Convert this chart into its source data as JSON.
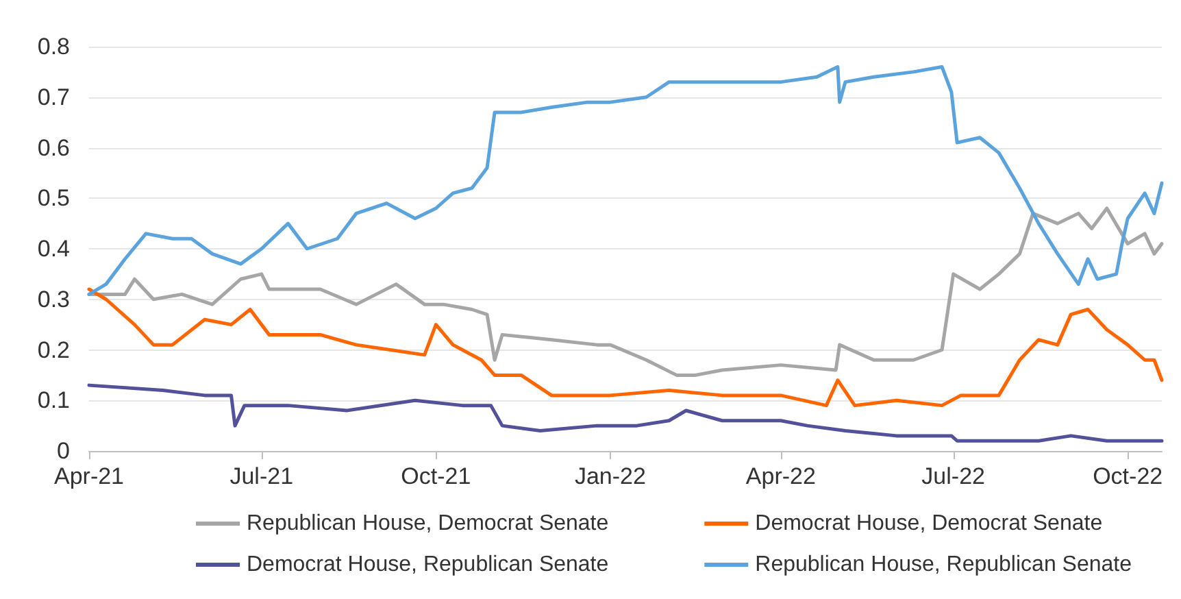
{
  "chart_data": {
    "type": "line",
    "xlim": [
      "2021-04-01",
      "2022-10-19"
    ],
    "xticks": [
      {
        "value": "2021-04-01",
        "label": "Apr-21"
      },
      {
        "value": "2021-07-01",
        "label": "Jul-21"
      },
      {
        "value": "2021-10-01",
        "label": "Oct-21"
      },
      {
        "value": "2022-01-01",
        "label": "Jan-22"
      },
      {
        "value": "2022-04-01",
        "label": "Apr-22"
      },
      {
        "value": "2022-07-01",
        "label": "Jul-22"
      },
      {
        "value": "2022-10-01",
        "label": "Oct-22"
      }
    ],
    "ylim": [
      0,
      0.8
    ],
    "yticks": [
      0,
      0.1,
      0.2,
      0.3,
      0.4,
      0.5,
      0.6,
      0.7,
      0.8
    ],
    "grid": "y",
    "legend": "bottom",
    "marker": "none",
    "line_style": "solid",
    "series": [
      {
        "name": "Republican House, Democrat Senate",
        "color": "#a6a6a6",
        "x": [
          "2021-04-01",
          "2021-04-20",
          "2021-04-25",
          "2021-05-05",
          "2021-05-20",
          "2021-06-05",
          "2021-06-20",
          "2021-07-01",
          "2021-07-05",
          "2021-08-01",
          "2021-08-20",
          "2021-09-10",
          "2021-09-25",
          "2021-10-05",
          "2021-10-20",
          "2021-10-28",
          "2021-11-01",
          "2021-11-05",
          "2021-12-01",
          "2021-12-25",
          "2022-01-01",
          "2022-01-20",
          "2022-02-05",
          "2022-02-15",
          "2022-03-01",
          "2022-04-01",
          "2022-04-30",
          "2022-05-02",
          "2022-05-20",
          "2022-06-10",
          "2022-06-25",
          "2022-07-01",
          "2022-07-15",
          "2022-07-25",
          "2022-08-05",
          "2022-08-12",
          "2022-08-25",
          "2022-09-05",
          "2022-09-12",
          "2022-09-20",
          "2022-10-01",
          "2022-10-10",
          "2022-10-15",
          "2022-10-19"
        ],
        "values": [
          0.31,
          0.31,
          0.34,
          0.3,
          0.31,
          0.29,
          0.34,
          0.35,
          0.32,
          0.32,
          0.29,
          0.33,
          0.29,
          0.29,
          0.28,
          0.27,
          0.18,
          0.23,
          0.22,
          0.21,
          0.21,
          0.18,
          0.15,
          0.15,
          0.16,
          0.17,
          0.16,
          0.21,
          0.18,
          0.18,
          0.2,
          0.35,
          0.32,
          0.35,
          0.39,
          0.47,
          0.45,
          0.47,
          0.44,
          0.48,
          0.41,
          0.43,
          0.39,
          0.41
        ]
      },
      {
        "name": "Democrat House, Democrat Senate",
        "color": "#ff6600",
        "x": [
          "2021-04-01",
          "2021-04-10",
          "2021-04-25",
          "2021-05-05",
          "2021-05-15",
          "2021-06-01",
          "2021-06-15",
          "2021-06-25",
          "2021-07-05",
          "2021-08-01",
          "2021-08-20",
          "2021-09-25",
          "2021-10-01",
          "2021-10-10",
          "2021-10-25",
          "2021-11-01",
          "2021-11-15",
          "2021-12-01",
          "2021-12-25",
          "2022-01-01",
          "2022-02-01",
          "2022-03-01",
          "2022-04-01",
          "2022-04-25",
          "2022-05-01",
          "2022-05-10",
          "2022-06-01",
          "2022-06-25",
          "2022-07-05",
          "2022-07-25",
          "2022-08-05",
          "2022-08-15",
          "2022-08-25",
          "2022-09-01",
          "2022-09-10",
          "2022-09-20",
          "2022-10-01",
          "2022-10-10",
          "2022-10-15",
          "2022-10-19"
        ],
        "values": [
          0.32,
          0.3,
          0.25,
          0.21,
          0.21,
          0.26,
          0.25,
          0.28,
          0.23,
          0.23,
          0.21,
          0.19,
          0.25,
          0.21,
          0.18,
          0.15,
          0.15,
          0.11,
          0.11,
          0.11,
          0.12,
          0.11,
          0.11,
          0.09,
          0.14,
          0.09,
          0.1,
          0.09,
          0.11,
          0.11,
          0.18,
          0.22,
          0.21,
          0.27,
          0.28,
          0.24,
          0.21,
          0.18,
          0.18,
          0.14
        ]
      },
      {
        "name": "Democrat House, Republican Senate",
        "color": "#525199",
        "x": [
          "2021-04-01",
          "2021-05-10",
          "2021-06-01",
          "2021-06-15",
          "2021-06-17",
          "2021-06-22",
          "2021-07-15",
          "2021-08-15",
          "2021-09-20",
          "2021-10-15",
          "2021-10-30",
          "2021-11-05",
          "2021-11-25",
          "2021-12-25",
          "2022-01-15",
          "2022-02-01",
          "2022-02-10",
          "2022-03-01",
          "2022-04-01",
          "2022-04-15",
          "2022-05-05",
          "2022-06-01",
          "2022-06-30",
          "2022-07-03",
          "2022-08-15",
          "2022-09-01",
          "2022-09-20",
          "2022-10-19"
        ],
        "values": [
          0.13,
          0.12,
          0.11,
          0.11,
          0.05,
          0.09,
          0.09,
          0.08,
          0.1,
          0.09,
          0.09,
          0.05,
          0.04,
          0.05,
          0.05,
          0.06,
          0.08,
          0.06,
          0.06,
          0.05,
          0.04,
          0.03,
          0.03,
          0.02,
          0.02,
          0.03,
          0.02,
          0.02
        ]
      },
      {
        "name": "Republican House, Republican Senate",
        "color": "#5ba3dc",
        "x": [
          "2021-04-01",
          "2021-04-10",
          "2021-04-20",
          "2021-05-01",
          "2021-05-15",
          "2021-05-25",
          "2021-06-05",
          "2021-06-20",
          "2021-07-01",
          "2021-07-15",
          "2021-07-25",
          "2021-08-10",
          "2021-08-20",
          "2021-09-05",
          "2021-09-20",
          "2021-10-01",
          "2021-10-10",
          "2021-10-20",
          "2021-10-28",
          "2021-11-01",
          "2021-11-15",
          "2021-12-01",
          "2021-12-20",
          "2022-01-01",
          "2022-01-20",
          "2022-02-01",
          "2022-02-15",
          "2022-03-01",
          "2022-03-20",
          "2022-04-01",
          "2022-04-20",
          "2022-05-01",
          "2022-05-02",
          "2022-05-05",
          "2022-05-20",
          "2022-06-10",
          "2022-06-25",
          "2022-06-30",
          "2022-07-03",
          "2022-07-15",
          "2022-07-25",
          "2022-08-05",
          "2022-08-15",
          "2022-08-25",
          "2022-09-05",
          "2022-09-10",
          "2022-09-15",
          "2022-09-25",
          "2022-09-28",
          "2022-10-01",
          "2022-10-10",
          "2022-10-15",
          "2022-10-19"
        ],
        "values": [
          0.31,
          0.33,
          0.38,
          0.43,
          0.42,
          0.42,
          0.39,
          0.37,
          0.4,
          0.45,
          0.4,
          0.42,
          0.47,
          0.49,
          0.46,
          0.48,
          0.51,
          0.52,
          0.56,
          0.67,
          0.67,
          0.68,
          0.69,
          0.69,
          0.7,
          0.73,
          0.73,
          0.73,
          0.73,
          0.73,
          0.74,
          0.76,
          0.69,
          0.73,
          0.74,
          0.75,
          0.76,
          0.71,
          0.61,
          0.62,
          0.59,
          0.52,
          0.45,
          0.39,
          0.33,
          0.38,
          0.34,
          0.35,
          0.41,
          0.46,
          0.51,
          0.47,
          0.53
        ]
      }
    ]
  }
}
